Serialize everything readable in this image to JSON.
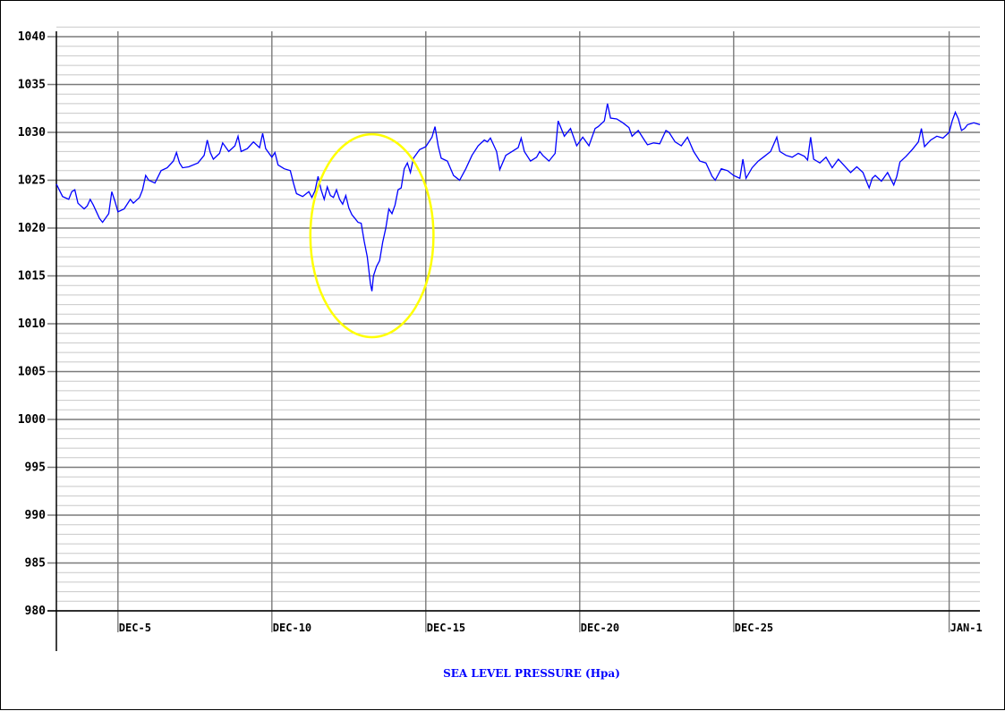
{
  "chart_data": {
    "type": "line",
    "title": "",
    "xlabel": "SEA LEVEL PRESSURE (Hpa)",
    "ylabel": "",
    "ylim": [
      980,
      1040
    ],
    "xlim_days": [
      3,
      33
    ],
    "grid": true,
    "y_major_ticks": [
      980,
      985,
      990,
      995,
      1000,
      1005,
      1010,
      1015,
      1020,
      1025,
      1030,
      1035,
      1040
    ],
    "y_tick_labels": [
      "980",
      "985",
      "990",
      "995",
      "1000",
      "1005",
      "1010",
      "1015",
      "1020",
      "1025",
      "1030",
      "1035",
      "1040"
    ],
    "x_ticks": [
      {
        "label": "DEC-5",
        "day": 5
      },
      {
        "label": "DEC-10",
        "day": 10
      },
      {
        "label": "DEC-15",
        "day": 15
      },
      {
        "label": "DEC-20",
        "day": 20
      },
      {
        "label": "DEC-25",
        "day": 25
      },
      {
        "label": "JAN-1",
        "day": 32
      }
    ],
    "series": [
      {
        "color": "#0000ff",
        "points": [
          [
            3.0,
            1024.6
          ],
          [
            3.2,
            1023.3
          ],
          [
            3.4,
            1023.0
          ],
          [
            3.5,
            1023.8
          ],
          [
            3.6,
            1024.0
          ],
          [
            3.7,
            1022.6
          ],
          [
            3.9,
            1022.0
          ],
          [
            4.0,
            1022.3
          ],
          [
            4.1,
            1023.0
          ],
          [
            4.2,
            1022.4
          ],
          [
            4.4,
            1021.0
          ],
          [
            4.5,
            1020.6
          ],
          [
            4.7,
            1021.5
          ],
          [
            4.8,
            1023.8
          ],
          [
            4.9,
            1022.8
          ],
          [
            5.0,
            1021.7
          ],
          [
            5.2,
            1022.0
          ],
          [
            5.4,
            1023.0
          ],
          [
            5.5,
            1022.6
          ],
          [
            5.7,
            1023.2
          ],
          [
            5.8,
            1024.0
          ],
          [
            5.9,
            1025.5
          ],
          [
            6.0,
            1025.0
          ],
          [
            6.2,
            1024.7
          ],
          [
            6.4,
            1026.0
          ],
          [
            6.6,
            1026.3
          ],
          [
            6.8,
            1027.0
          ],
          [
            6.9,
            1027.9
          ],
          [
            7.0,
            1026.8
          ],
          [
            7.1,
            1026.3
          ],
          [
            7.3,
            1026.4
          ],
          [
            7.6,
            1026.8
          ],
          [
            7.8,
            1027.6
          ],
          [
            7.9,
            1029.2
          ],
          [
            8.0,
            1027.9
          ],
          [
            8.1,
            1027.2
          ],
          [
            8.3,
            1027.8
          ],
          [
            8.4,
            1028.9
          ],
          [
            8.6,
            1028.0
          ],
          [
            8.8,
            1028.6
          ],
          [
            8.9,
            1029.6
          ],
          [
            9.0,
            1028.0
          ],
          [
            9.2,
            1028.3
          ],
          [
            9.4,
            1029.0
          ],
          [
            9.6,
            1028.4
          ],
          [
            9.7,
            1029.9
          ],
          [
            9.8,
            1028.3
          ],
          [
            10.0,
            1027.4
          ],
          [
            10.1,
            1027.9
          ],
          [
            10.2,
            1026.6
          ],
          [
            10.4,
            1026.2
          ],
          [
            10.6,
            1026.0
          ],
          [
            10.7,
            1024.7
          ],
          [
            10.8,
            1023.6
          ],
          [
            11.0,
            1023.3
          ],
          [
            11.2,
            1023.8
          ],
          [
            11.3,
            1023.2
          ],
          [
            11.4,
            1023.9
          ],
          [
            11.5,
            1025.4
          ],
          [
            11.6,
            1024.0
          ],
          [
            11.7,
            1023.0
          ],
          [
            11.8,
            1024.3
          ],
          [
            11.9,
            1023.4
          ],
          [
            12.0,
            1023.2
          ],
          [
            12.1,
            1024.0
          ],
          [
            12.2,
            1023.0
          ],
          [
            12.3,
            1022.5
          ],
          [
            12.4,
            1023.4
          ],
          [
            12.5,
            1022.1
          ],
          [
            12.6,
            1021.4
          ],
          [
            12.7,
            1021.0
          ],
          [
            12.8,
            1020.6
          ],
          [
            12.9,
            1020.5
          ],
          [
            13.0,
            1018.6
          ],
          [
            13.1,
            1017.0
          ],
          [
            13.2,
            1014.2
          ],
          [
            13.25,
            1013.4
          ],
          [
            13.3,
            1015.0
          ],
          [
            13.4,
            1016.0
          ],
          [
            13.5,
            1016.6
          ],
          [
            13.6,
            1018.5
          ],
          [
            13.7,
            1020.0
          ],
          [
            13.8,
            1022.0
          ],
          [
            13.9,
            1021.5
          ],
          [
            14.0,
            1022.4
          ],
          [
            14.1,
            1024.0
          ],
          [
            14.2,
            1024.2
          ],
          [
            14.3,
            1026.2
          ],
          [
            14.4,
            1026.8
          ],
          [
            14.5,
            1025.8
          ],
          [
            14.6,
            1027.3
          ],
          [
            14.8,
            1028.2
          ],
          [
            15.0,
            1028.5
          ],
          [
            15.2,
            1029.5
          ],
          [
            15.3,
            1030.6
          ],
          [
            15.4,
            1028.6
          ],
          [
            15.5,
            1027.3
          ],
          [
            15.7,
            1027.0
          ],
          [
            15.9,
            1025.5
          ],
          [
            16.1,
            1025.0
          ],
          [
            16.3,
            1026.2
          ],
          [
            16.5,
            1027.6
          ],
          [
            16.7,
            1028.6
          ],
          [
            16.9,
            1029.2
          ],
          [
            17.0,
            1029.0
          ],
          [
            17.1,
            1029.4
          ],
          [
            17.3,
            1028.0
          ],
          [
            17.4,
            1026.1
          ],
          [
            17.6,
            1027.6
          ],
          [
            17.8,
            1028.0
          ],
          [
            18.0,
            1028.4
          ],
          [
            18.1,
            1029.4
          ],
          [
            18.2,
            1028.0
          ],
          [
            18.4,
            1027.0
          ],
          [
            18.6,
            1027.4
          ],
          [
            18.7,
            1028.0
          ],
          [
            18.8,
            1027.6
          ],
          [
            19.0,
            1027.0
          ],
          [
            19.2,
            1027.8
          ],
          [
            19.3,
            1031.2
          ],
          [
            19.5,
            1029.6
          ],
          [
            19.7,
            1030.4
          ],
          [
            19.9,
            1028.6
          ],
          [
            20.1,
            1029.5
          ],
          [
            20.3,
            1028.6
          ],
          [
            20.5,
            1030.4
          ],
          [
            20.6,
            1030.6
          ],
          [
            20.8,
            1031.2
          ],
          [
            20.9,
            1033.0
          ],
          [
            21.0,
            1031.5
          ],
          [
            21.2,
            1031.4
          ],
          [
            21.4,
            1031.0
          ],
          [
            21.6,
            1030.5
          ],
          [
            21.7,
            1029.6
          ],
          [
            21.9,
            1030.2
          ],
          [
            22.1,
            1029.2
          ],
          [
            22.2,
            1028.7
          ],
          [
            22.4,
            1028.9
          ],
          [
            22.6,
            1028.8
          ],
          [
            22.8,
            1030.2
          ],
          [
            22.9,
            1030.0
          ],
          [
            23.1,
            1029.0
          ],
          [
            23.3,
            1028.6
          ],
          [
            23.5,
            1029.5
          ],
          [
            23.7,
            1028.0
          ],
          [
            23.9,
            1027.0
          ],
          [
            24.1,
            1026.8
          ],
          [
            24.3,
            1025.4
          ],
          [
            24.4,
            1025.0
          ],
          [
            24.6,
            1026.2
          ],
          [
            24.8,
            1026.0
          ],
          [
            25.0,
            1025.5
          ],
          [
            25.2,
            1025.2
          ],
          [
            25.3,
            1027.2
          ],
          [
            25.4,
            1025.2
          ],
          [
            25.6,
            1026.3
          ],
          [
            25.8,
            1027.0
          ],
          [
            26.0,
            1027.5
          ],
          [
            26.2,
            1028.0
          ],
          [
            26.4,
            1029.5
          ],
          [
            26.5,
            1028.0
          ],
          [
            26.7,
            1027.6
          ],
          [
            26.9,
            1027.4
          ],
          [
            27.1,
            1027.8
          ],
          [
            27.3,
            1027.5
          ],
          [
            27.4,
            1027.1
          ],
          [
            27.5,
            1029.5
          ],
          [
            27.6,
            1027.2
          ],
          [
            27.8,
            1026.8
          ],
          [
            28.0,
            1027.4
          ],
          [
            28.2,
            1026.3
          ],
          [
            28.4,
            1027.2
          ],
          [
            28.6,
            1026.5
          ],
          [
            28.8,
            1025.8
          ],
          [
            29.0,
            1026.4
          ],
          [
            29.2,
            1025.8
          ],
          [
            29.3,
            1025.0
          ],
          [
            29.4,
            1024.2
          ],
          [
            29.5,
            1025.2
          ],
          [
            29.6,
            1025.5
          ],
          [
            29.8,
            1024.9
          ],
          [
            30.0,
            1025.8
          ],
          [
            30.2,
            1024.5
          ],
          [
            30.3,
            1025.4
          ],
          [
            30.4,
            1026.9
          ],
          [
            30.6,
            1027.5
          ],
          [
            30.8,
            1028.2
          ],
          [
            31.0,
            1029.0
          ],
          [
            31.1,
            1030.4
          ],
          [
            31.2,
            1028.5
          ],
          [
            31.4,
            1029.2
          ],
          [
            31.6,
            1029.6
          ],
          [
            31.8,
            1029.4
          ],
          [
            32.0,
            1030.0
          ],
          [
            32.1,
            1031.2
          ],
          [
            32.2,
            1032.1
          ],
          [
            32.3,
            1031.4
          ],
          [
            32.4,
            1030.2
          ],
          [
            32.5,
            1030.4
          ],
          [
            32.6,
            1030.8
          ],
          [
            32.8,
            1031.0
          ],
          [
            33.0,
            1030.8
          ]
        ]
      }
    ],
    "annotations": [
      {
        "type": "ellipse",
        "color": "#ffff00",
        "center_day": 13.25,
        "center_value": 1019.2,
        "radius_days": 2.0,
        "radius_value": 10.6
      }
    ]
  }
}
